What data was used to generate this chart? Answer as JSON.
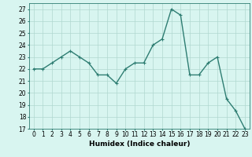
{
  "x": [
    0,
    1,
    2,
    3,
    4,
    5,
    6,
    7,
    8,
    9,
    10,
    11,
    12,
    13,
    14,
    15,
    16,
    17,
    18,
    19,
    20,
    21,
    22,
    23
  ],
  "y": [
    22,
    22,
    22.5,
    23,
    23.5,
    23,
    22.5,
    21.5,
    21.5,
    20.8,
    22,
    22.5,
    22.5,
    24,
    24.5,
    27,
    26.5,
    21.5,
    21.5,
    22.5,
    23,
    19.5,
    18.5,
    17
  ],
  "line_color": "#2e7d72",
  "marker": "+",
  "marker_size": 3,
  "bg_color": "#d8f5f0",
  "grid_color": "#b0d8d0",
  "xlabel": "Humidex (Indice chaleur)",
  "xlim": [
    -0.5,
    23.5
  ],
  "ylim": [
    17,
    27.5
  ],
  "yticks": [
    17,
    18,
    19,
    20,
    21,
    22,
    23,
    24,
    25,
    26,
    27
  ],
  "xticks": [
    0,
    1,
    2,
    3,
    4,
    5,
    6,
    7,
    8,
    9,
    10,
    11,
    12,
    13,
    14,
    15,
    16,
    17,
    18,
    19,
    20,
    21,
    22,
    23
  ],
  "xlabel_fontsize": 6.5,
  "tick_fontsize": 5.5,
  "line_width": 1.0
}
